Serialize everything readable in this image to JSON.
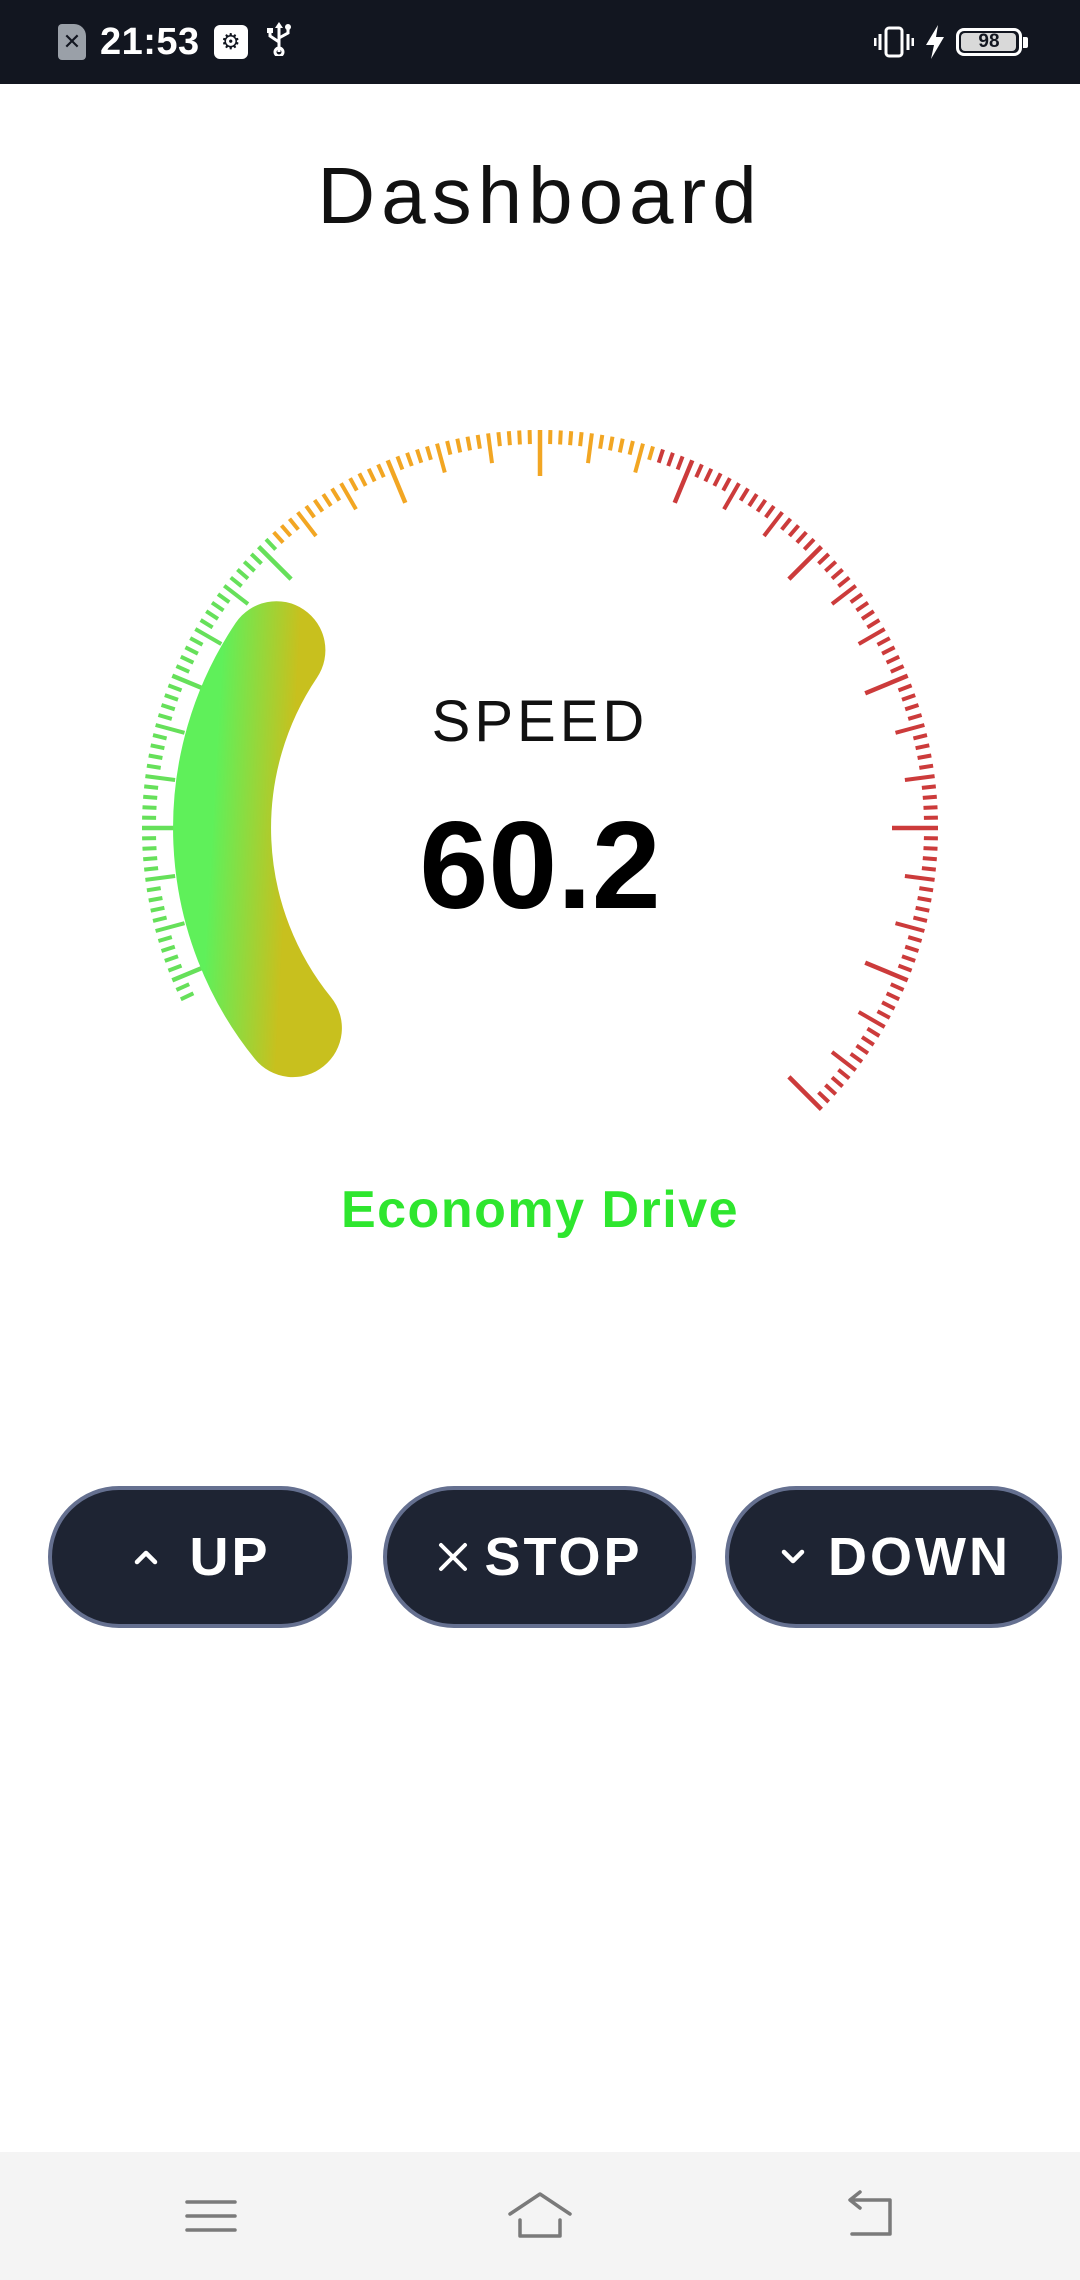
{
  "status_bar": {
    "time": "21:53",
    "battery_level": "98",
    "icons": [
      "no-sim-icon",
      "usb-debugging-icon",
      "usb-icon",
      "vibrate-icon",
      "charging-bolt-icon",
      "battery-icon"
    ]
  },
  "page": {
    "title": "Dashboard"
  },
  "gauge": {
    "label": "SPEED",
    "value": "60.2",
    "zones": [
      {
        "name": "green",
        "color": "#66e05a"
      },
      {
        "name": "orange",
        "color": "#f2a623"
      },
      {
        "name": "red",
        "color": "#cc3b3b"
      }
    ],
    "progress_color_start": "#5ff05a",
    "progress_color_end": "#c8c01e"
  },
  "drive_mode": {
    "text": "Economy Drive",
    "color": "#2ee62e"
  },
  "controls": {
    "up_label": "UP",
    "stop_label": "STOP",
    "down_label": "DOWN",
    "up_icon": "chevron-up-icon",
    "stop_icon": "close-icon",
    "down_icon": "chevron-down-icon",
    "button_bg": "#1e2433",
    "button_border": "#657090"
  },
  "nav_bar": {
    "icons": [
      "menu-icon",
      "home-icon",
      "back-icon"
    ]
  }
}
